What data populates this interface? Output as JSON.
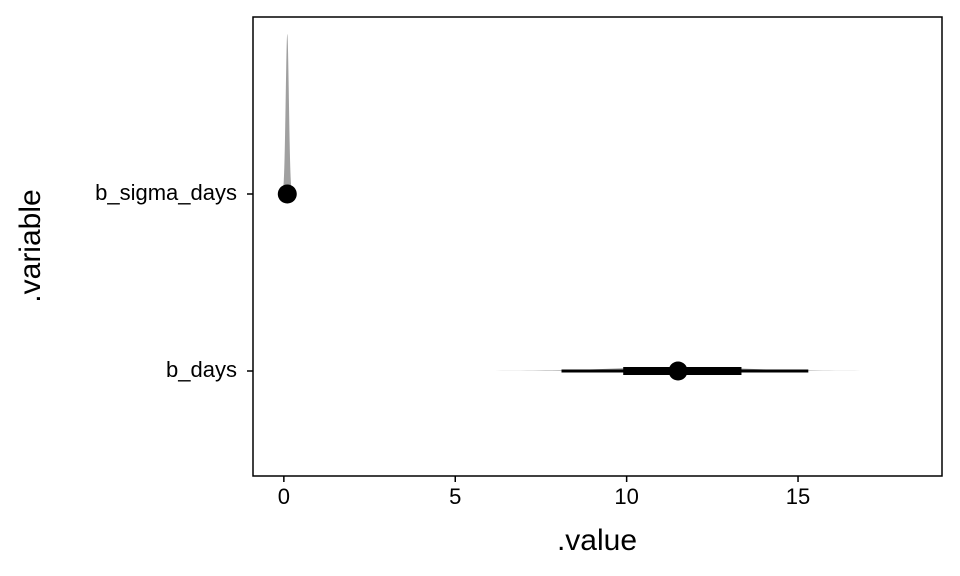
{
  "chart_data": {
    "type": "halfeye",
    "xlabel": ".value",
    "ylabel": ".variable",
    "categories": [
      "b_sigma_days",
      "b_days"
    ],
    "points": [
      0.1,
      11.5
    ],
    "inner_lower": [
      0.05,
      9.9
    ],
    "inner_upper": [
      0.15,
      13.35
    ],
    "outer_lower": [
      0.02,
      8.1
    ],
    "outer_upper": [
      0.2,
      15.3
    ],
    "xlim": [
      -0.9,
      19.2
    ],
    "xticks": [
      0,
      5,
      10,
      15
    ],
    "color": "#000000",
    "slab_color": "#808080"
  }
}
